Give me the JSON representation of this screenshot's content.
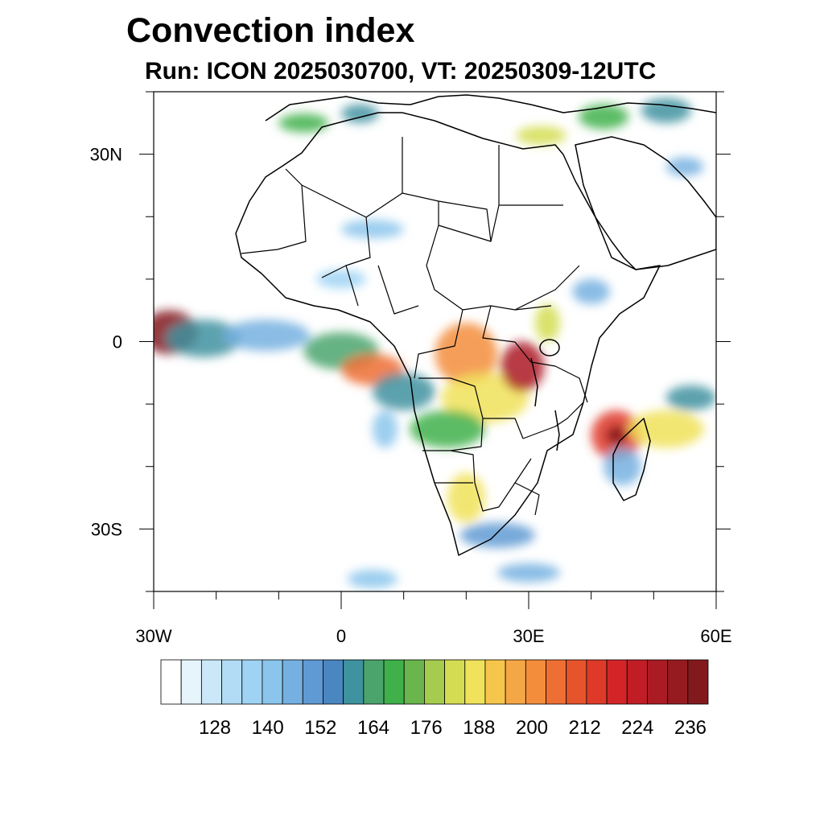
{
  "title": "Convection index",
  "subtitle": "Run: ICON 2025030700,  VT: 20250309-12UTC",
  "map": {
    "extent": {
      "lon_min": -30,
      "lon_max": 60,
      "lat_min": -40,
      "lat_max": 40
    },
    "lat_tick_labels": [
      {
        "lat": 30,
        "label": "30N"
      },
      {
        "lat": 0,
        "label": "0"
      },
      {
        "lat": -30,
        "label": "30S"
      }
    ],
    "lon_tick_labels": [
      {
        "lon": -30,
        "label": "30W"
      },
      {
        "lon": 0,
        "label": "0"
      },
      {
        "lon": 30,
        "label": "30E"
      },
      {
        "lon": 60,
        "label": "60E"
      }
    ],
    "field_blobs": [
      {
        "lon": -27.5,
        "lat": 1.5,
        "rx": 4.5,
        "ry": 3.5,
        "level": 224
      },
      {
        "lon": -22,
        "lat": 0.5,
        "rx": 6,
        "ry": 3,
        "level": 150
      },
      {
        "lon": -12,
        "lat": 1,
        "rx": 7,
        "ry": 2.5,
        "level": 140
      },
      {
        "lon": 0,
        "lat": -1.5,
        "rx": 6,
        "ry": 3,
        "level": 155
      },
      {
        "lon": 5,
        "lat": -4.5,
        "rx": 5,
        "ry": 2.5,
        "level": 190
      },
      {
        "lon": 10,
        "lat": -8,
        "rx": 5,
        "ry": 3,
        "level": 150
      },
      {
        "lon": 7,
        "lat": -14,
        "rx": 2,
        "ry": 3,
        "level": 135
      },
      {
        "lon": 20,
        "lat": -2,
        "rx": 5,
        "ry": 5,
        "level": 188
      },
      {
        "lon": 23,
        "lat": -9,
        "rx": 7,
        "ry": 4,
        "level": 176
      },
      {
        "lon": 29,
        "lat": -4,
        "rx": 3.5,
        "ry": 4,
        "level": 210
      },
      {
        "lon": 17,
        "lat": -14,
        "rx": 6,
        "ry": 3,
        "level": 160
      },
      {
        "lon": 33,
        "lat": 3,
        "rx": 2,
        "ry": 3,
        "level": 170
      },
      {
        "lon": 20,
        "lat": -25,
        "rx": 3,
        "ry": 4,
        "level": 176
      },
      {
        "lon": 25,
        "lat": -31,
        "rx": 6,
        "ry": 2,
        "level": 145
      },
      {
        "lon": 44,
        "lat": -15,
        "rx": 4,
        "ry": 4,
        "level": 200
      },
      {
        "lon": 44,
        "lat": -15,
        "rx": 1.6,
        "ry": 1.6,
        "level": 236
      },
      {
        "lon": 52,
        "lat": -14,
        "rx": 6,
        "ry": 3,
        "level": 176
      },
      {
        "lon": 56,
        "lat": -9,
        "rx": 4,
        "ry": 2,
        "level": 150
      },
      {
        "lon": 45,
        "lat": -20,
        "rx": 3,
        "ry": 3,
        "level": 140
      },
      {
        "lon": -6,
        "lat": 35,
        "rx": 4,
        "ry": 1.5,
        "level": 160
      },
      {
        "lon": 3,
        "lat": 36.5,
        "rx": 3,
        "ry": 1.5,
        "level": 150
      },
      {
        "lon": 32,
        "lat": 33,
        "rx": 4,
        "ry": 1.5,
        "level": 170
      },
      {
        "lon": 42,
        "lat": 36,
        "rx": 4,
        "ry": 2,
        "level": 160
      },
      {
        "lon": 52,
        "lat": 37,
        "rx": 4,
        "ry": 2,
        "level": 152
      },
      {
        "lon": 55,
        "lat": 28,
        "rx": 3,
        "ry": 1.5,
        "level": 140
      },
      {
        "lon": 5,
        "lat": 18,
        "rx": 5,
        "ry": 1.5,
        "level": 135
      },
      {
        "lon": 0,
        "lat": 10,
        "rx": 4,
        "ry": 1.5,
        "level": 130
      },
      {
        "lon": 40,
        "lat": 8,
        "rx": 3,
        "ry": 2,
        "level": 140
      },
      {
        "lon": 5,
        "lat": -38,
        "rx": 4,
        "ry": 1.5,
        "level": 135
      },
      {
        "lon": 30,
        "lat": -37,
        "rx": 5,
        "ry": 1.5,
        "level": 140
      }
    ]
  },
  "colorbar": {
    "colors": [
      "#ffffff",
      "#e6f4fc",
      "#cbe8f8",
      "#b2dcf5",
      "#9ed3f4",
      "#8bc5ec",
      "#75b0e1",
      "#5f9ad4",
      "#4a86c0",
      "#3f92a0",
      "#4aa46c",
      "#3fb04a",
      "#6ab64c",
      "#a6cc4f",
      "#d4dd52",
      "#f0e25a",
      "#f6c54b",
      "#f6a745",
      "#f38d3c",
      "#ee6f33",
      "#e6542b",
      "#df3a29",
      "#d32528",
      "#c11d27",
      "#ab1b24",
      "#951b20",
      "#821a1d"
    ],
    "tick_labels": [
      {
        "index": 3,
        "label": "128"
      },
      {
        "index": 6,
        "label": "140"
      },
      {
        "index": 9,
        "label": "152"
      },
      {
        "index": 12,
        "label": "164"
      },
      {
        "index": 15,
        "label": "176"
      },
      {
        "index": 18,
        "label": "188"
      },
      {
        "index": 21,
        "label": "200"
      },
      {
        "index": 24,
        "label": "212"
      },
      {
        "index": 27,
        "label": "224"
      },
      {
        "index": 30,
        "label": "236"
      }
    ]
  }
}
